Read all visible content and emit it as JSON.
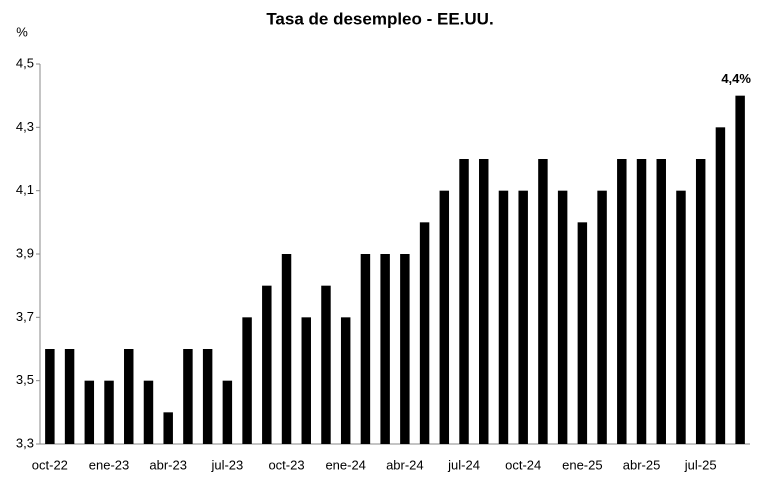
{
  "chart_data": {
    "type": "bar",
    "title": "Tasa de desempleo - EE.UU.",
    "y_label": "%",
    "categories": [
      "oct-22",
      null,
      null,
      "ene-23",
      null,
      null,
      "abr-23",
      null,
      null,
      "jul-23",
      null,
      null,
      "oct-23",
      null,
      null,
      "ene-24",
      null,
      null,
      "abr-24",
      null,
      null,
      "jul-24",
      null,
      null,
      "oct-24",
      null,
      null,
      "ene-25",
      null,
      null,
      "abr-25",
      null,
      null,
      "jul-25",
      null,
      null
    ],
    "values": [
      3.6,
      3.6,
      3.5,
      3.5,
      3.6,
      3.5,
      3.4,
      3.6,
      3.6,
      3.5,
      3.7,
      3.8,
      3.9,
      3.7,
      3.8,
      3.7,
      3.9,
      3.9,
      3.9,
      4.0,
      4.1,
      4.2,
      4.2,
      4.1,
      4.1,
      4.2,
      4.1,
      4.0,
      4.1,
      4.2,
      4.2,
      4.2,
      4.1,
      4.2,
      4.3,
      4.4
    ],
    "value_labels": [
      null,
      null,
      null,
      null,
      null,
      null,
      null,
      null,
      null,
      null,
      null,
      null,
      null,
      null,
      null,
      null,
      null,
      null,
      null,
      null,
      null,
      null,
      null,
      null,
      null,
      null,
      null,
      null,
      null,
      null,
      null,
      null,
      null,
      null,
      null,
      "4,4%"
    ],
    "color": "#000000",
    "ylim": [
      3.3,
      4.5
    ],
    "yticks": [
      {
        "value": 3.3,
        "label": "3,3"
      },
      {
        "value": 3.5,
        "label": "3,5"
      },
      {
        "value": 3.7,
        "label": "3,7"
      },
      {
        "value": 3.9,
        "label": "3,9"
      },
      {
        "value": 4.1,
        "label": "4,1"
      },
      {
        "value": 4.3,
        "label": "4,3"
      },
      {
        "value": 4.5,
        "label": "4,5"
      }
    ],
    "grid": false
  }
}
